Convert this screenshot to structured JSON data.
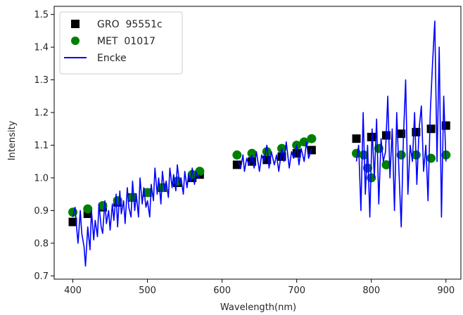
{
  "chart_data": {
    "type": "scatter",
    "xlabel": "Wavelength(nm)",
    "ylabel": "Intensity",
    "xlim": [
      375,
      920
    ],
    "ylim": [
      0.69,
      1.525
    ],
    "xticks": [
      400,
      500,
      600,
      700,
      800,
      900
    ],
    "yticks": [
      0.7,
      0.8,
      0.9,
      1.0,
      1.1,
      1.2,
      1.3,
      1.4,
      1.5
    ],
    "xtick_labels": [
      "400",
      "500",
      "600",
      "700",
      "800",
      "900"
    ],
    "ytick_labels": [
      "0.7",
      "0.8",
      "0.9",
      "1.0",
      "1.1",
      "1.2",
      "1.3",
      "1.4",
      "1.5"
    ],
    "grid": false,
    "legend_position": "top-left",
    "series": [
      {
        "name": "GRO  95551c",
        "marker": "square",
        "color": "#000000",
        "segments": [
          {
            "x": [
              400,
              420,
              440,
              460,
              480,
              500,
              520,
              540,
              560,
              570
            ],
            "y": [
              0.865,
              0.89,
              0.91,
              0.925,
              0.94,
              0.955,
              0.97,
              0.985,
              1.0,
              1.01
            ]
          },
          {
            "x": [
              620,
              640,
              660,
              680,
              700,
              720
            ],
            "y": [
              1.04,
              1.05,
              1.055,
              1.065,
              1.075,
              1.085
            ]
          },
          {
            "x": [
              780,
              800,
              820,
              840,
              860,
              880,
              900
            ],
            "y": [
              1.12,
              1.125,
              1.13,
              1.135,
              1.14,
              1.15,
              1.16
            ]
          }
        ]
      },
      {
        "name": "MET  01017",
        "marker": "circle",
        "color": "#008000",
        "segments": [
          {
            "x": [
              400,
              420,
              440,
              460,
              480,
              500,
              520,
              540,
              560,
              570
            ],
            "y": [
              0.895,
              0.905,
              0.915,
              0.93,
              0.94,
              0.955,
              0.97,
              0.99,
              1.01,
              1.02
            ]
          },
          {
            "x": [
              620,
              640,
              660,
              680,
              700,
              710,
              720
            ],
            "y": [
              1.07,
              1.075,
              1.08,
              1.09,
              1.1,
              1.11,
              1.12
            ]
          },
          {
            "x": [
              780,
              790,
              795,
              800,
              810,
              820,
              840,
              860,
              880,
              900
            ],
            "y": [
              1.075,
              1.07,
              1.03,
              1.0,
              1.09,
              1.04,
              1.07,
              1.07,
              1.06,
              1.07
            ]
          }
        ]
      },
      {
        "name": "Encke",
        "marker": "line",
        "color": "#0000ff",
        "segments": [
          {
            "x": [
              400,
              403,
              405,
              407,
              410,
              412,
              415,
              417,
              420,
              423,
              425,
              428,
              430,
              433,
              435,
              438,
              440,
              443,
              445,
              448,
              450,
              453,
              455,
              458,
              460,
              463,
              465,
              468,
              470,
              473,
              475,
              478,
              480,
              483,
              485,
              488,
              490,
              493,
              495,
              498,
              500,
              503,
              505,
              508,
              510,
              513,
              515,
              518,
              520,
              523,
              525,
              528,
              530,
              533,
              535,
              538,
              540,
              543,
              545,
              548,
              550,
              553,
              555,
              558,
              560,
              563,
              565,
              568,
              570
            ],
            "y": [
              0.88,
              0.91,
              0.85,
              0.8,
              0.9,
              0.83,
              0.79,
              0.73,
              0.85,
              0.78,
              0.9,
              0.81,
              0.87,
              0.82,
              0.92,
              0.85,
              0.83,
              0.93,
              0.86,
              0.9,
              0.84,
              0.92,
              0.87,
              0.95,
              0.85,
              0.96,
              0.89,
              0.93,
              0.86,
              0.97,
              0.91,
              0.88,
              0.99,
              0.9,
              0.95,
              0.88,
              1.0,
              0.92,
              0.97,
              0.91,
              0.93,
              0.88,
              0.98,
              0.93,
              1.03,
              0.95,
              1.0,
              0.92,
              1.02,
              0.96,
              0.99,
              0.94,
              1.03,
              0.97,
              1.01,
              0.96,
              1.04,
              0.98,
              1.0,
              0.95,
              1.02,
              0.97,
              1.01,
              0.99,
              1.03,
              0.98,
              1.02,
              1.0,
              1.01
            ]
          },
          {
            "x": [
              622,
              625,
              628,
              630,
              633,
              636,
              640,
              643,
              646,
              650,
              653,
              656,
              660,
              663,
              666,
              670,
              673,
              676,
              680,
              683,
              686,
              690,
              693,
              696,
              700,
              703,
              706,
              710,
              713,
              716,
              720
            ],
            "y": [
              1.05,
              1.03,
              1.07,
              1.02,
              1.06,
              1.04,
              1.07,
              1.03,
              1.08,
              1.02,
              1.07,
              1.05,
              1.1,
              1.03,
              1.08,
              1.04,
              1.07,
              1.02,
              1.09,
              1.05,
              1.11,
              1.03,
              1.08,
              1.06,
              1.1,
              1.04,
              1.09,
              1.05,
              1.11,
              1.06,
              1.09
            ]
          },
          {
            "x": [
              780,
              783,
              786,
              789,
              792,
              795,
              798,
              801,
              804,
              807,
              810,
              813,
              816,
              819,
              822,
              825,
              828,
              831,
              834,
              837,
              840,
              843,
              846,
              849,
              852,
              855,
              858,
              861,
              864,
              867,
              870,
              873,
              876,
              879,
              882,
              885,
              888,
              891,
              894,
              897,
              900
            ],
            "y": [
              1.05,
              1.1,
              0.9,
              1.2,
              0.95,
              1.1,
              0.88,
              1.15,
              1.0,
              1.18,
              0.92,
              1.12,
              1.05,
              1.08,
              1.25,
              1.0,
              1.15,
              0.9,
              1.2,
              1.02,
              0.85,
              1.12,
              1.3,
              0.95,
              1.1,
              1.05,
              1.2,
              0.98,
              1.15,
              1.22,
              1.02,
              1.1,
              0.93,
              1.2,
              1.35,
              1.48,
              1.05,
              1.4,
              0.88,
              1.25,
              1.05
            ]
          }
        ]
      }
    ]
  }
}
